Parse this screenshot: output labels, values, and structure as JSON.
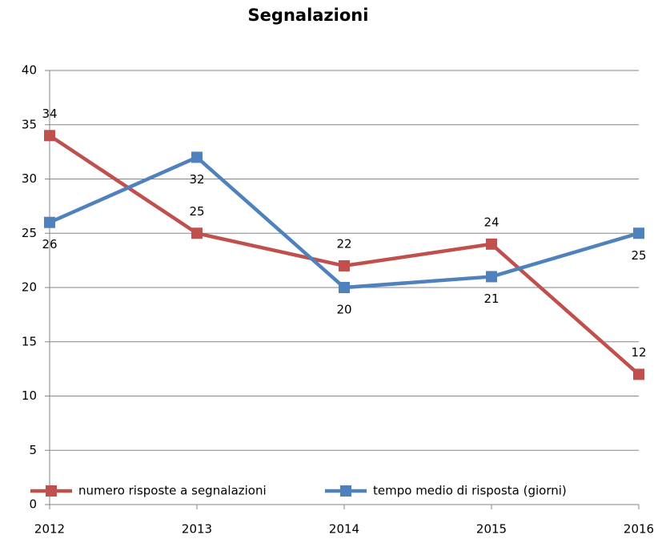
{
  "chart_data": {
    "type": "line",
    "title": "Segnalazioni",
    "categories": [
      "2012",
      "2013",
      "2014",
      "2015",
      "2016"
    ],
    "series": [
      {
        "name": "numero risposte a segnalazioni",
        "color": "#c0504d",
        "values": [
          34,
          25,
          22,
          24,
          12
        ]
      },
      {
        "name": "tempo medio di risposta (giorni)",
        "color": "#4f81bd",
        "values": [
          26,
          32,
          20,
          21,
          25
        ]
      }
    ],
    "ylim": [
      0,
      40
    ],
    "yticks": [
      0,
      5,
      10,
      15,
      20,
      25,
      30,
      35,
      40
    ],
    "grid": true,
    "legend": "bottom"
  }
}
